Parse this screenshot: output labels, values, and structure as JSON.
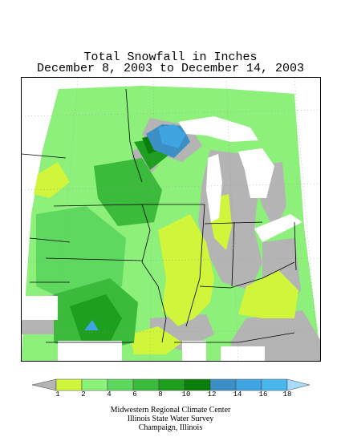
{
  "title": {
    "line1": "Total Snowfall in Inches",
    "line2": "December 8, 2003 to December 14, 2003"
  },
  "colors": {
    "c0": "#b4b4b4",
    "c1": "#d0f53a",
    "c2": "#8cf07a",
    "c4": "#5fd85f",
    "c6": "#3bba3b",
    "c8": "#1f9f1f",
    "c10": "#0a7f0a",
    "c12": "#3b8fc4",
    "c14": "#3fa4e0",
    "c16": "#4ab6ee",
    "c18": "#a8dcff",
    "water": "#ffffff",
    "nodata": "#ffffff"
  },
  "legend": {
    "ticks": [
      "1",
      "2",
      "4",
      "6",
      "8",
      "10",
      "12",
      "14",
      "16",
      "18"
    ],
    "swatch_colors": [
      "#b4b4b4",
      "#d0f53a",
      "#8cf07a",
      "#5fd85f",
      "#3bba3b",
      "#1f9f1f",
      "#0a7f0a",
      "#3b8fc4",
      "#3fa4e0",
      "#4ab6ee",
      "#a8dcff"
    ]
  },
  "credits": {
    "line1": "Midwestern Regional Climate Center",
    "line2": "Illinois State Water Survey",
    "line3": "Champaign, Illinois"
  }
}
